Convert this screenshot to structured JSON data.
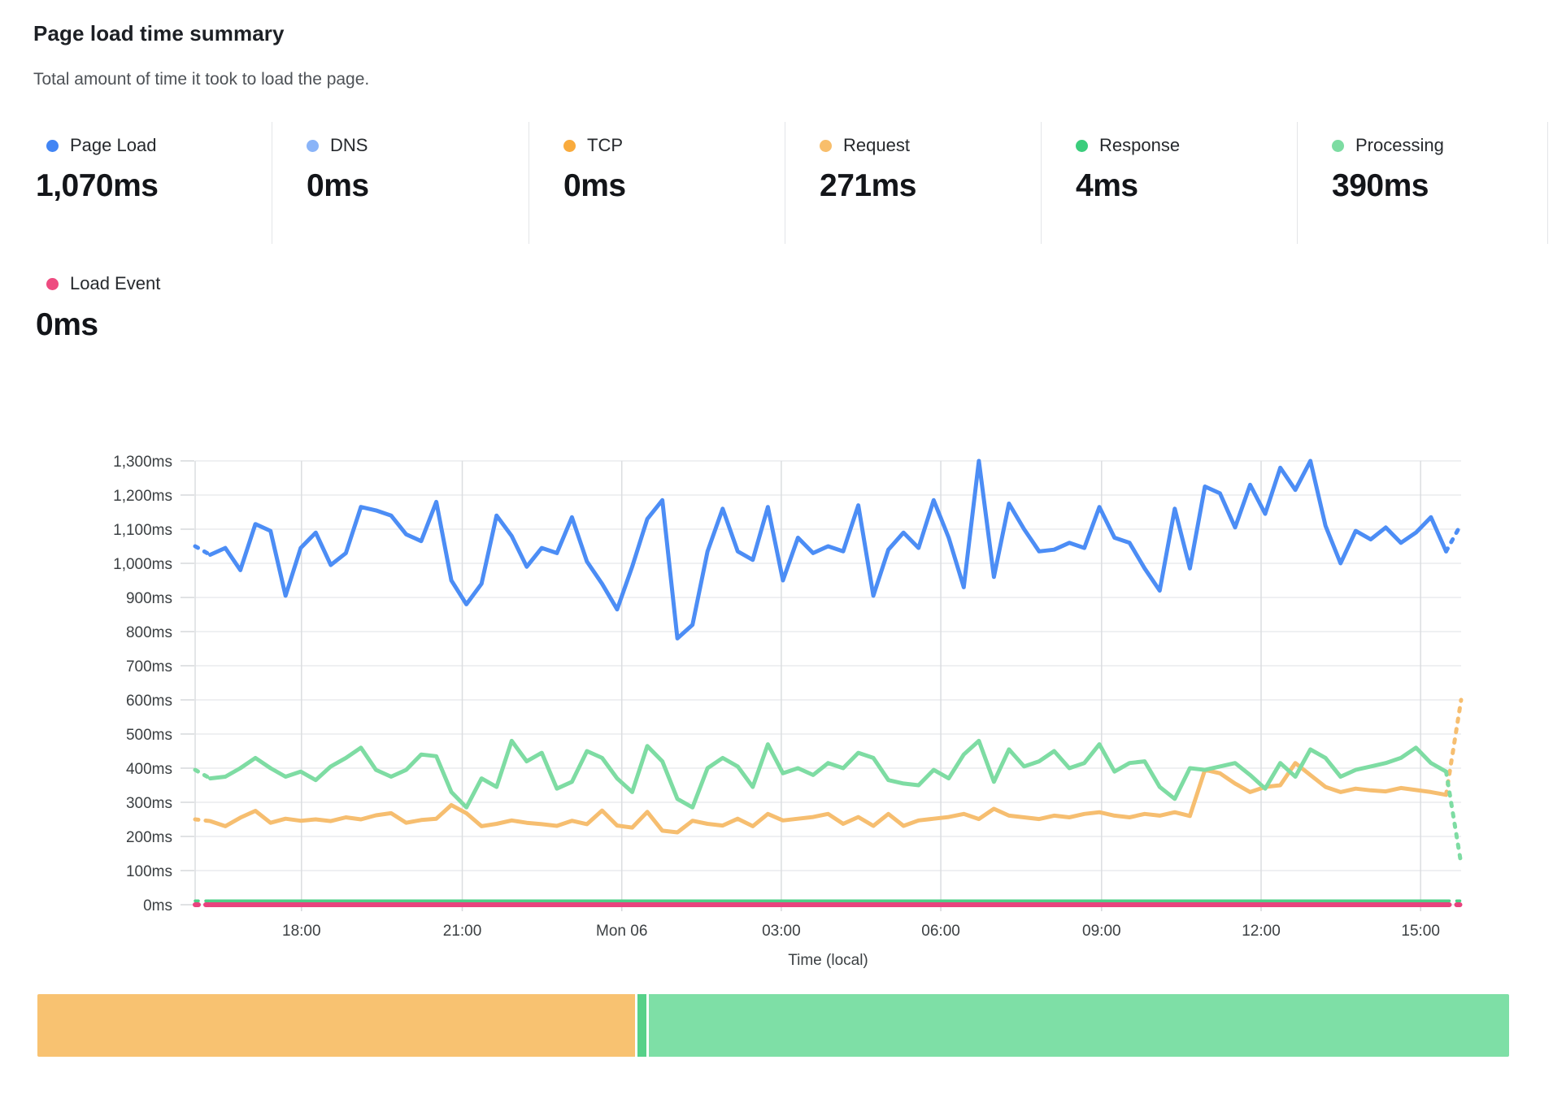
{
  "header": {
    "title": "Page load time summary",
    "subtitle": "Total amount of time it took to load the page."
  },
  "metrics": [
    {
      "id": "page-load",
      "label": "Page Load",
      "value": "1,070ms",
      "color": "#4285f4"
    },
    {
      "id": "dns",
      "label": "DNS",
      "value": "0ms",
      "color": "#8ab4f8"
    },
    {
      "id": "tcp",
      "label": "TCP",
      "value": "0ms",
      "color": "#f9ab3d"
    },
    {
      "id": "request",
      "label": "Request",
      "value": "271ms",
      "color": "#f8be6b"
    },
    {
      "id": "response",
      "label": "Response",
      "value": "4ms",
      "color": "#3bcd7c"
    },
    {
      "id": "processing",
      "label": "Processing",
      "value": "390ms",
      "color": "#7ddca2"
    }
  ],
  "secondary_metric": {
    "id": "load-event",
    "label": "Load Event",
    "value": "0ms",
    "color": "#ee4b80"
  },
  "chart_data": {
    "type": "line",
    "title": "Page load time summary",
    "xlabel": "Time (local)",
    "ylabel": "",
    "ylim": [
      0,
      1300
    ],
    "grid": true,
    "legend_position": "top-metric-cards",
    "edge_segments_dashed": true,
    "y_tick_labels": [
      "0ms",
      "100ms",
      "200ms",
      "300ms",
      "400ms",
      "500ms",
      "600ms",
      "700ms",
      "800ms",
      "900ms",
      "1,000ms",
      "1,100ms",
      "1,200ms",
      "1,300ms"
    ],
    "x_ticks": [
      {
        "label": "18:00",
        "f": 0.084
      },
      {
        "label": "21:00",
        "f": 0.211
      },
      {
        "label": "Mon 06",
        "f": 0.337
      },
      {
        "label": "03:00",
        "f": 0.463
      },
      {
        "label": "06:00",
        "f": 0.589
      },
      {
        "label": "09:00",
        "f": 0.716
      },
      {
        "label": "12:00",
        "f": 0.842
      },
      {
        "label": "15:00",
        "f": 0.968
      }
    ],
    "series": [
      {
        "name": "Page Load",
        "color": "#4c8df5",
        "values": [
          1050,
          1025,
          1045,
          980,
          1115,
          1095,
          905,
          1045,
          1090,
          995,
          1030,
          1165,
          1155,
          1140,
          1085,
          1065,
          1180,
          950,
          880,
          940,
          1140,
          1080,
          990,
          1045,
          1030,
          1135,
          1005,
          940,
          865,
          990,
          1130,
          1185,
          780,
          820,
          1035,
          1160,
          1035,
          1010,
          1165,
          950,
          1075,
          1030,
          1050,
          1035,
          1170,
          905,
          1040,
          1090,
          1045,
          1185,
          1075,
          930,
          1300,
          960,
          1175,
          1100,
          1035,
          1040,
          1060,
          1045,
          1165,
          1075,
          1060,
          985,
          920,
          1160,
          985,
          1225,
          1205,
          1105,
          1230,
          1145,
          1280,
          1215,
          1300,
          1110,
          1000,
          1095,
          1070,
          1105,
          1060,
          1090,
          1135,
          1035,
          1115
        ]
      },
      {
        "name": "Processing",
        "color": "#7edca3",
        "values": [
          395,
          370,
          375,
          400,
          430,
          400,
          375,
          390,
          365,
          405,
          430,
          460,
          395,
          375,
          395,
          440,
          435,
          330,
          285,
          370,
          345,
          480,
          420,
          445,
          340,
          360,
          450,
          430,
          370,
          330,
          465,
          420,
          310,
          285,
          400,
          430,
          405,
          345,
          470,
          385,
          400,
          380,
          415,
          400,
          445,
          430,
          365,
          355,
          350,
          395,
          370,
          440,
          480,
          360,
          455,
          405,
          420,
          450,
          400,
          415,
          470,
          390,
          415,
          420,
          345,
          310,
          400,
          395,
          405,
          415,
          380,
          340,
          415,
          375,
          455,
          430,
          375,
          395,
          405,
          415,
          430,
          460,
          415,
          390,
          120
        ]
      },
      {
        "name": "Request",
        "color": "#f6be70",
        "values": [
          250,
          245,
          230,
          255,
          275,
          240,
          252,
          246,
          250,
          245,
          256,
          250,
          262,
          268,
          240,
          248,
          252,
          292,
          268,
          230,
          237,
          247,
          240,
          236,
          231,
          246,
          236,
          276,
          232,
          226,
          272,
          217,
          212,
          246,
          237,
          232,
          252,
          230,
          266,
          247,
          252,
          257,
          266,
          237,
          257,
          231,
          266,
          231,
          247,
          252,
          257,
          266,
          251,
          281,
          261,
          256,
          251,
          261,
          256,
          266,
          271,
          261,
          256,
          266,
          261,
          271,
          260,
          395,
          385,
          355,
          330,
          345,
          350,
          415,
          380,
          345,
          330,
          340,
          335,
          332,
          342,
          336,
          330,
          322,
          600
        ]
      },
      {
        "name": "Response",
        "color": "#4ecf87",
        "flat": 4
      },
      {
        "name": "Load Event",
        "color": "#e8437e",
        "flat": 0
      }
    ]
  },
  "breakdown_bar": {
    "segments": [
      {
        "label": "Request",
        "value": 271,
        "color": "#f8c271"
      },
      {
        "label": "Response",
        "value": 4,
        "color": "#56d189"
      },
      {
        "label": "Processing",
        "value": 390,
        "color": "#7edfa6"
      }
    ]
  }
}
